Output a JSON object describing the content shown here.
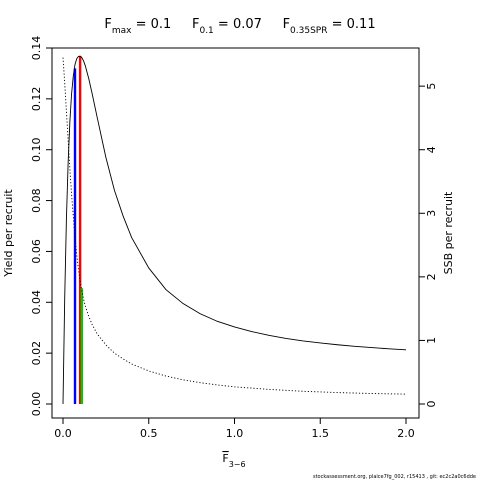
{
  "chart_data": {
    "type": "line",
    "title_parts": [
      {
        "main": "F",
        "sub": "max",
        "rest": " = 0.1"
      },
      {
        "main": "F",
        "sub": "0.1",
        "rest": " = 0.07"
      },
      {
        "main": "F",
        "sub": "0.35SPR",
        "rest": " = 0.11"
      }
    ],
    "xlabel": {
      "main": "F",
      "sub": "3−6"
    },
    "ylabel": "Yield per recruit",
    "y2label": "SSB per recruit",
    "xlim": [
      0,
      2
    ],
    "ylim": [
      0,
      0.14
    ],
    "y2lim": [
      0,
      5.6
    ],
    "xticks": [
      {
        "v": 0,
        "label": "0.0"
      },
      {
        "v": 0.5,
        "label": "0.5"
      },
      {
        "v": 1.0,
        "label": "1.0"
      },
      {
        "v": 1.5,
        "label": "1.5"
      },
      {
        "v": 2.0,
        "label": "2.0"
      }
    ],
    "yticks": [
      {
        "v": 0,
        "label": "0.00"
      },
      {
        "v": 0.02,
        "label": "0.02"
      },
      {
        "v": 0.04,
        "label": "0.04"
      },
      {
        "v": 0.06,
        "label": "0.06"
      },
      {
        "v": 0.08,
        "label": "0.08"
      },
      {
        "v": 0.1,
        "label": "0.10"
      },
      {
        "v": 0.12,
        "label": "0.12"
      },
      {
        "v": 0.14,
        "label": "0.14"
      }
    ],
    "y2ticks": [
      {
        "v": 0,
        "label": "0"
      },
      {
        "v": 1,
        "label": "1"
      },
      {
        "v": 2,
        "label": "2"
      },
      {
        "v": 3,
        "label": "3"
      },
      {
        "v": 4,
        "label": "4"
      },
      {
        "v": 5,
        "label": "5"
      }
    ],
    "series": [
      {
        "axis": "left",
        "style": "solid",
        "color": "#000000",
        "x": [
          0,
          0.01,
          0.02,
          0.03,
          0.04,
          0.05,
          0.06,
          0.07,
          0.08,
          0.09,
          0.1,
          0.11,
          0.12,
          0.13,
          0.15,
          0.17,
          0.2,
          0.25,
          0.3,
          0.35,
          0.4,
          0.5,
          0.6,
          0.7,
          0.8,
          0.9,
          1.0,
          1.1,
          1.2,
          1.3,
          1.4,
          1.5,
          1.6,
          1.7,
          1.8,
          1.9,
          2.0
        ],
        "y": [
          0,
          0.042,
          0.073,
          0.095,
          0.111,
          0.122,
          0.129,
          0.1335,
          0.1358,
          0.1367,
          0.1368,
          0.1362,
          0.1349,
          0.133,
          0.128,
          0.122,
          0.1125,
          0.097,
          0.084,
          0.074,
          0.0655,
          0.0535,
          0.045,
          0.0395,
          0.0355,
          0.0325,
          0.0303,
          0.0285,
          0.027,
          0.0258,
          0.0248,
          0.024,
          0.0233,
          0.0227,
          0.0222,
          0.0217,
          0.0213
        ]
      },
      {
        "axis": "right",
        "style": "dotted",
        "color": "#000000",
        "x": [
          0,
          0.01,
          0.02,
          0.03,
          0.04,
          0.05,
          0.06,
          0.07,
          0.08,
          0.09,
          0.1,
          0.11,
          0.12,
          0.13,
          0.15,
          0.17,
          0.2,
          0.25,
          0.3,
          0.35,
          0.4,
          0.5,
          0.6,
          0.7,
          0.8,
          0.9,
          1.0,
          1.2,
          1.4,
          1.6,
          1.8,
          2.0
        ],
        "y": [
          5.45,
          5.05,
          4.6,
          4.15,
          3.7,
          3.3,
          2.95,
          2.62,
          2.35,
          2.12,
          1.93,
          1.78,
          1.65,
          1.54,
          1.38,
          1.25,
          1.1,
          0.93,
          0.8,
          0.71,
          0.63,
          0.52,
          0.44,
          0.38,
          0.335,
          0.3,
          0.27,
          0.23,
          0.2,
          0.18,
          0.165,
          0.155
        ]
      }
    ],
    "ref_lines": [
      {
        "name": "Fmax",
        "x": 0.1,
        "axis": "left",
        "y": 0.1368,
        "color": "#ff0000"
      },
      {
        "name": "F0.1",
        "x": 0.07,
        "axis": "left",
        "y": 0.132,
        "color": "#0000ff"
      },
      {
        "name": "F0.35SPR",
        "x": 0.11,
        "axis": "right",
        "y": 1.82,
        "color": "#00cd00"
      }
    ],
    "footer": "stockassessment.org, plaice7fg_002, r15413 ,  git: ec2c2a0c6dde"
  }
}
